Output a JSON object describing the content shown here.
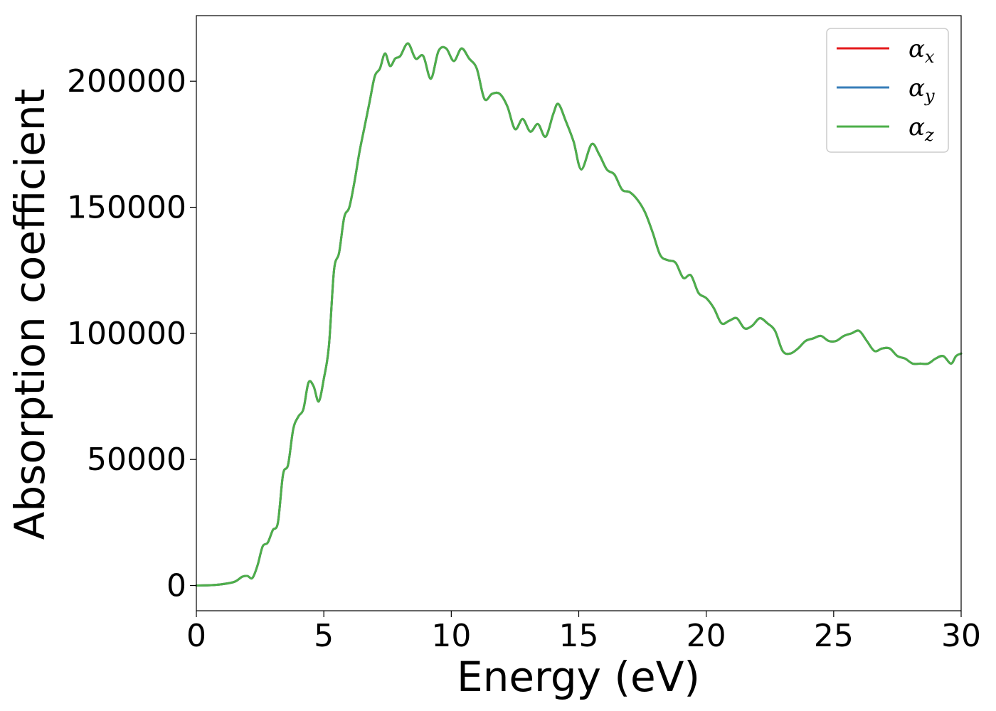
{
  "chart_data": {
    "type": "line",
    "title": "",
    "xlabel": "Energy (eV)",
    "ylabel": "Absorption coefficient",
    "xlim": [
      0,
      30
    ],
    "ylim": [
      -10000,
      226000
    ],
    "xticks": [
      0,
      5,
      10,
      15,
      20,
      25,
      30
    ],
    "yticks": [
      0,
      50000,
      100000,
      150000,
      200000
    ],
    "grid": false,
    "legend_position": "top-right",
    "x": [
      0,
      0.5,
      1.0,
      1.5,
      1.8,
      2.0,
      2.2,
      2.4,
      2.6,
      2.8,
      3.0,
      3.2,
      3.4,
      3.6,
      3.8,
      4.0,
      4.2,
      4.4,
      4.6,
      4.8,
      5.0,
      5.2,
      5.4,
      5.6,
      5.8,
      6.0,
      6.2,
      6.4,
      6.6,
      6.8,
      7.0,
      7.2,
      7.4,
      7.6,
      7.8,
      8.0,
      8.3,
      8.6,
      8.9,
      9.2,
      9.5,
      9.8,
      10.1,
      10.4,
      10.7,
      11.0,
      11.3,
      11.6,
      11.9,
      12.2,
      12.5,
      12.8,
      13.1,
      13.4,
      13.7,
      14.0,
      14.2,
      14.5,
      14.8,
      15.1,
      15.5,
      15.8,
      16.1,
      16.4,
      16.7,
      17.0,
      17.3,
      17.6,
      17.9,
      18.2,
      18.5,
      18.8,
      19.1,
      19.4,
      19.7,
      20.0,
      20.3,
      20.6,
      20.9,
      21.2,
      21.5,
      21.8,
      22.1,
      22.4,
      22.7,
      23.0,
      23.3,
      23.6,
      23.9,
      24.2,
      24.5,
      24.8,
      25.1,
      25.4,
      25.7,
      26.0,
      26.3,
      26.6,
      26.9,
      27.2,
      27.5,
      27.8,
      28.1,
      28.4,
      28.7,
      29.0,
      29.3,
      29.6,
      29.8,
      30.0
    ],
    "series": [
      {
        "name": "α_x",
        "label_base": "α",
        "label_sub": "x",
        "color": "#e41a1c",
        "values": [
          0,
          100,
          500,
          1500,
          3500,
          3800,
          3000,
          8000,
          15500,
          17000,
          22000,
          25000,
          44000,
          48000,
          62000,
          67000,
          70000,
          80500,
          79000,
          73000,
          82000,
          95000,
          125000,
          132000,
          146000,
          150000,
          160000,
          172000,
          182000,
          192000,
          202000,
          205000,
          211000,
          206000,
          209000,
          210000,
          215000,
          209000,
          210000,
          201000,
          212000,
          213000,
          208000,
          213000,
          209000,
          205000,
          193000,
          195000,
          195000,
          190000,
          181000,
          185000,
          180000,
          183000,
          178000,
          187000,
          191000,
          184000,
          176000,
          165000,
          175000,
          171000,
          165000,
          163000,
          157000,
          156000,
          153000,
          148000,
          140000,
          131000,
          129000,
          128000,
          122000,
          123000,
          116000,
          114000,
          110000,
          104000,
          105000,
          106000,
          102000,
          103000,
          106000,
          104000,
          101000,
          93000,
          92000,
          94000,
          97000,
          98000,
          99000,
          97000,
          97000,
          99000,
          100000,
          101000,
          97000,
          93000,
          94000,
          94000,
          91000,
          90000,
          88000,
          88000,
          88000,
          90000,
          91000,
          88000,
          91000,
          92000
        ]
      },
      {
        "name": "α_y",
        "label_base": "α",
        "label_sub": "y",
        "color": "#377eb8",
        "values": [
          0,
          100,
          500,
          1500,
          3500,
          3800,
          3000,
          8000,
          15500,
          17000,
          22000,
          25000,
          44000,
          48000,
          62000,
          67000,
          70000,
          80500,
          79000,
          73000,
          82000,
          95000,
          125000,
          132000,
          146000,
          150000,
          160000,
          172000,
          182000,
          192000,
          202000,
          205000,
          211000,
          206000,
          209000,
          210000,
          215000,
          209000,
          210000,
          201000,
          212000,
          213000,
          208000,
          213000,
          209000,
          205000,
          193000,
          195000,
          195000,
          190000,
          181000,
          185000,
          180000,
          183000,
          178000,
          187000,
          191000,
          184000,
          176000,
          165000,
          175000,
          171000,
          165000,
          163000,
          157000,
          156000,
          153000,
          148000,
          140000,
          131000,
          129000,
          128000,
          122000,
          123000,
          116000,
          114000,
          110000,
          104000,
          105000,
          106000,
          102000,
          103000,
          106000,
          104000,
          101000,
          93000,
          92000,
          94000,
          97000,
          98000,
          99000,
          97000,
          97000,
          99000,
          100000,
          101000,
          97000,
          93000,
          94000,
          94000,
          91000,
          90000,
          88000,
          88000,
          88000,
          90000,
          91000,
          88000,
          91000,
          92000
        ]
      },
      {
        "name": "α_z",
        "label_base": "α",
        "label_sub": "z",
        "color": "#4daf4a",
        "values": [
          0,
          100,
          500,
          1500,
          3500,
          3800,
          3000,
          8000,
          15500,
          17000,
          22000,
          25000,
          44000,
          48000,
          62000,
          67000,
          70000,
          80500,
          79000,
          73000,
          82000,
          95000,
          125000,
          132000,
          146000,
          150000,
          160000,
          172000,
          182000,
          192000,
          202000,
          205000,
          211000,
          206000,
          209000,
          210000,
          215000,
          209000,
          210000,
          201000,
          212000,
          213000,
          208000,
          213000,
          209000,
          205000,
          193000,
          195000,
          195000,
          190000,
          181000,
          185000,
          180000,
          183000,
          178000,
          187000,
          191000,
          184000,
          176000,
          165000,
          175000,
          171000,
          165000,
          163000,
          157000,
          156000,
          153000,
          148000,
          140000,
          131000,
          129000,
          128000,
          122000,
          123000,
          116000,
          114000,
          110000,
          104000,
          105000,
          106000,
          102000,
          103000,
          106000,
          104000,
          101000,
          93000,
          92000,
          94000,
          97000,
          98000,
          99000,
          97000,
          97000,
          99000,
          100000,
          101000,
          97000,
          93000,
          94000,
          94000,
          91000,
          90000,
          88000,
          88000,
          88000,
          90000,
          91000,
          88000,
          91000,
          92000
        ]
      }
    ]
  }
}
